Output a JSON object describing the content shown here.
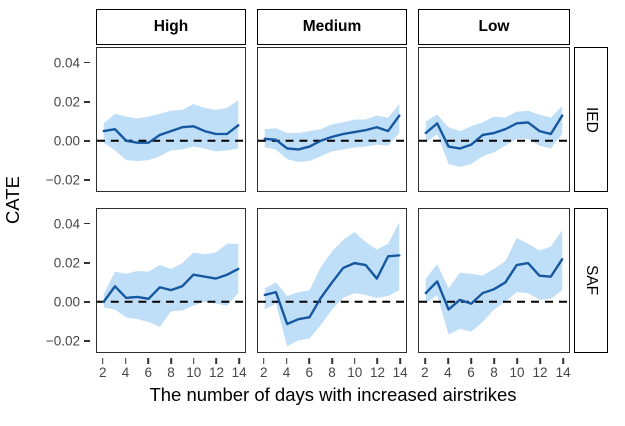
{
  "axes": {
    "y_label": "CATE",
    "x_label": "The number of days with increased airstrikes",
    "y_ticks": [
      {
        "label": "0.04",
        "value": 0.04
      },
      {
        "label": "0.02",
        "value": 0.02
      },
      {
        "label": "0.00",
        "value": 0.0
      },
      {
        "label": "−0.02",
        "value": -0.02
      }
    ],
    "x_ticks": [
      {
        "label": "2",
        "value": 2
      },
      {
        "label": "4",
        "value": 4
      },
      {
        "label": "6",
        "value": 6
      },
      {
        "label": "8",
        "value": 8
      },
      {
        "label": "10",
        "value": 10
      },
      {
        "label": "12",
        "value": 12
      },
      {
        "label": "14",
        "value": 14
      }
    ]
  },
  "facets": {
    "col_labels": [
      "High",
      "Medium",
      "Low"
    ],
    "row_labels": [
      "IED",
      "SAF"
    ]
  },
  "chart_data": {
    "type": "line",
    "description": "Faceted CATE estimates with 95% confidence ribbons; columns = airstrike intensity (High/Medium/Low), rows = attack type (IED/SAF); dashed line at 0.",
    "x": [
      2,
      3,
      4,
      5,
      6,
      7,
      8,
      9,
      10,
      11,
      12,
      13,
      14
    ],
    "xlim": [
      1.4,
      14.6
    ],
    "ylim": [
      -0.026,
      0.048
    ],
    "zero_line": 0,
    "grid": false,
    "legend": false,
    "colors": {
      "line": "#1557A0",
      "ribbon": "#BFDEF7",
      "zero_dash": "#000000"
    },
    "panels": [
      {
        "row": "IED",
        "col": "High",
        "line": [
          0.005,
          0.006,
          0.0,
          -0.001,
          -0.001,
          0.003,
          0.005,
          0.007,
          0.0075,
          0.005,
          0.0035,
          0.0035,
          0.008
        ],
        "upper": [
          0.009,
          0.014,
          0.0125,
          0.0115,
          0.0125,
          0.014,
          0.0155,
          0.016,
          0.019,
          0.017,
          0.016,
          0.017,
          0.021
        ],
        "lower": [
          -0.001,
          -0.005,
          -0.01,
          -0.0105,
          -0.01,
          -0.008,
          -0.005,
          -0.0045,
          -0.003,
          -0.004,
          -0.0055,
          -0.005,
          -0.004
        ]
      },
      {
        "row": "IED",
        "col": "Medium",
        "line": [
          0.001,
          0.0005,
          -0.004,
          -0.0045,
          -0.003,
          0.0,
          0.002,
          0.0035,
          0.0045,
          0.0055,
          0.007,
          0.005,
          0.013
        ],
        "upper": [
          0.006,
          0.0065,
          0.004,
          0.004,
          0.005,
          0.006,
          0.0085,
          0.0095,
          0.011,
          0.011,
          0.013,
          0.012,
          0.019
        ],
        "lower": [
          -0.0035,
          -0.0045,
          -0.0095,
          -0.011,
          -0.0105,
          -0.008,
          -0.0055,
          -0.0045,
          -0.0035,
          -0.003,
          -0.002,
          -0.0025,
          0.004
        ]
      },
      {
        "row": "IED",
        "col": "Low",
        "line": [
          0.004,
          0.009,
          -0.003,
          -0.004,
          -0.002,
          0.003,
          0.004,
          0.006,
          0.009,
          0.0095,
          0.005,
          0.0035,
          0.013
        ],
        "upper": [
          0.01,
          0.0135,
          0.007,
          0.005,
          0.0075,
          0.0095,
          0.0125,
          0.012,
          0.015,
          0.0155,
          0.0135,
          0.012,
          0.018
        ],
        "lower": [
          -0.001,
          0.0035,
          -0.012,
          -0.0135,
          -0.012,
          -0.008,
          -0.006,
          -0.0025,
          0.001,
          0.001,
          -0.0025,
          -0.004,
          0.0035
        ]
      },
      {
        "row": "SAF",
        "col": "High",
        "line": [
          0.0,
          0.008,
          0.002,
          0.0025,
          0.0015,
          0.0075,
          0.006,
          0.008,
          0.014,
          0.013,
          0.012,
          0.014,
          0.017
        ],
        "upper": [
          0.004,
          0.0155,
          0.0145,
          0.016,
          0.0155,
          0.019,
          0.017,
          0.02,
          0.0255,
          0.0245,
          0.0255,
          0.03,
          0.03
        ],
        "lower": [
          -0.003,
          -0.004,
          -0.008,
          -0.009,
          -0.0105,
          -0.013,
          -0.005,
          -0.0045,
          -0.002,
          0.0,
          -0.001,
          -0.002,
          0.0045
        ]
      },
      {
        "row": "SAF",
        "col": "Medium",
        "line": [
          0.0035,
          0.005,
          -0.0115,
          -0.009,
          -0.008,
          0.002,
          0.01,
          0.0175,
          0.02,
          0.019,
          0.012,
          0.0235,
          0.024
        ],
        "upper": [
          0.007,
          0.01,
          0.003,
          0.005,
          0.006,
          0.018,
          0.026,
          0.032,
          0.036,
          0.031,
          0.027,
          0.03,
          0.041
        ],
        "lower": [
          -0.004,
          -0.001,
          -0.023,
          -0.02,
          -0.019,
          -0.012,
          -0.004,
          0.002,
          0.0045,
          0.0035,
          0.002,
          0.003,
          0.006
        ]
      },
      {
        "row": "SAF",
        "col": "Low",
        "line": [
          0.0045,
          0.0105,
          -0.004,
          0.001,
          -0.001,
          0.0045,
          0.0065,
          0.01,
          0.019,
          0.02,
          0.0135,
          0.013,
          0.022
        ],
        "upper": [
          0.012,
          0.0195,
          0.007,
          0.015,
          0.0145,
          0.0135,
          0.017,
          0.021,
          0.033,
          0.03,
          0.0265,
          0.0285,
          0.037
        ],
        "lower": [
          -0.001,
          0.0035,
          -0.017,
          -0.014,
          -0.0155,
          -0.0105,
          -0.004,
          0.0,
          0.005,
          0.0045,
          0.001,
          0.0015,
          0.006
        ]
      }
    ]
  }
}
